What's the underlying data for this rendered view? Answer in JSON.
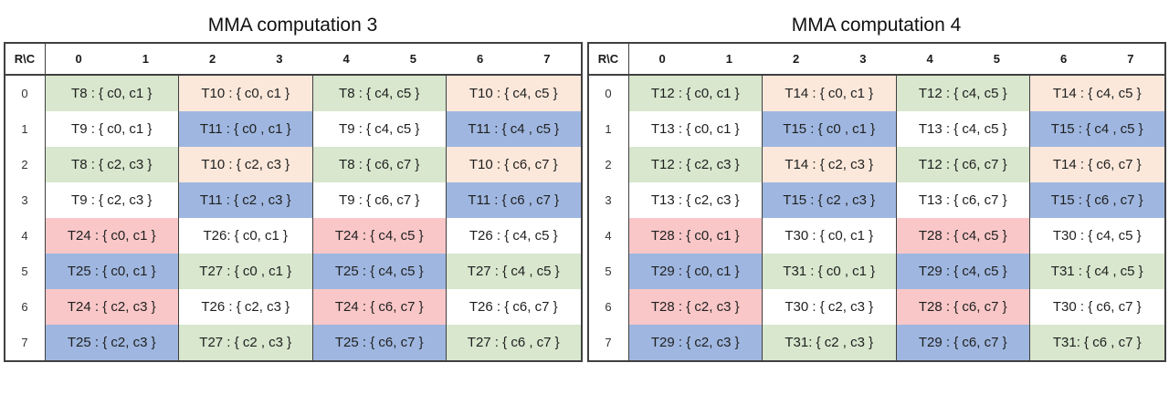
{
  "palette": {
    "green": "#d8e7ce",
    "peach": "#fbe8db",
    "blue": "#9fb7e0",
    "pink": "#f9c7c8",
    "white": "#ffffff",
    "border": "#404040",
    "text": "#1f1f1f"
  },
  "tables": [
    {
      "title": "MMA computation 3",
      "corner_label": "R\\C",
      "column_headers": [
        "0",
        "1",
        "2",
        "3",
        "4",
        "5",
        "6",
        "7"
      ],
      "row_labels": [
        "0",
        "1",
        "2",
        "3",
        "4",
        "5",
        "6",
        "7"
      ],
      "rows": [
        [
          {
            "text": "T8 : { c0, c1 }",
            "color": "green"
          },
          {
            "text": "T10 : { c0, c1 }",
            "color": "peach"
          },
          {
            "text": "T8 : { c4, c5 }",
            "color": "green"
          },
          {
            "text": "T10 : { c4, c5 }",
            "color": "peach"
          }
        ],
        [
          {
            "text": "T9 : { c0, c1 }",
            "color": "white"
          },
          {
            "text": "T11 : { c0 , c1 }",
            "color": "blue"
          },
          {
            "text": "T9 : { c4, c5 }",
            "color": "white"
          },
          {
            "text": "T11 : { c4 , c5 }",
            "color": "blue"
          }
        ],
        [
          {
            "text": "T8 : { c2, c3 }",
            "color": "green"
          },
          {
            "text": "T10 : { c2, c3 }",
            "color": "peach"
          },
          {
            "text": "T8 : { c6, c7 }",
            "color": "green"
          },
          {
            "text": "T10 : { c6, c7 }",
            "color": "peach"
          }
        ],
        [
          {
            "text": "T9 : { c2, c3 }",
            "color": "white"
          },
          {
            "text": "T11 : { c2 , c3 }",
            "color": "blue"
          },
          {
            "text": "T9 : { c6, c7 }",
            "color": "white"
          },
          {
            "text": "T11 : { c6 , c7 }",
            "color": "blue"
          }
        ],
        [
          {
            "text": "T24 : { c0, c1 }",
            "color": "pink"
          },
          {
            "text": "T26: { c0, c1 }",
            "color": "white"
          },
          {
            "text": "T24 : { c4, c5 }",
            "color": "pink"
          },
          {
            "text": "T26 : { c4, c5 }",
            "color": "white"
          }
        ],
        [
          {
            "text": "T25 : { c0, c1 }",
            "color": "blue"
          },
          {
            "text": "T27 : { c0 , c1 }",
            "color": "green"
          },
          {
            "text": "T25 : { c4, c5 }",
            "color": "blue"
          },
          {
            "text": "T27 : { c4 , c5 }",
            "color": "green"
          }
        ],
        [
          {
            "text": "T24 : { c2, c3 }",
            "color": "pink"
          },
          {
            "text": "T26 : { c2, c3 }",
            "color": "white"
          },
          {
            "text": "T24 : { c6, c7 }",
            "color": "pink"
          },
          {
            "text": "T26 : { c6, c7 }",
            "color": "white"
          }
        ],
        [
          {
            "text": "T25 : { c2, c3 }",
            "color": "blue"
          },
          {
            "text": "T27 : { c2 , c3 }",
            "color": "green"
          },
          {
            "text": "T25 : { c6, c7 }",
            "color": "blue"
          },
          {
            "text": "T27 : { c6 , c7 }",
            "color": "green"
          }
        ]
      ]
    },
    {
      "title": "MMA computation 4",
      "corner_label": "R\\C",
      "column_headers": [
        "0",
        "1",
        "2",
        "3",
        "4",
        "5",
        "6",
        "7"
      ],
      "row_labels": [
        "0",
        "1",
        "2",
        "3",
        "4",
        "5",
        "6",
        "7"
      ],
      "rows": [
        [
          {
            "text": "T12 : { c0, c1 }",
            "color": "green"
          },
          {
            "text": "T14 : { c0, c1 }",
            "color": "peach"
          },
          {
            "text": "T12 : { c4, c5 }",
            "color": "green"
          },
          {
            "text": "T14 : { c4, c5 }",
            "color": "peach"
          }
        ],
        [
          {
            "text": "T13 : { c0, c1 }",
            "color": "white"
          },
          {
            "text": "T15 : { c0 , c1 }",
            "color": "blue"
          },
          {
            "text": "T13 : { c4, c5 }",
            "color": "white"
          },
          {
            "text": "T15 : { c4 , c5 }",
            "color": "blue"
          }
        ],
        [
          {
            "text": "T12 : { c2, c3 }",
            "color": "green"
          },
          {
            "text": "T14 : { c2, c3 }",
            "color": "peach"
          },
          {
            "text": "T12 : { c6, c7 }",
            "color": "green"
          },
          {
            "text": "T14 : { c6, c7 }",
            "color": "peach"
          }
        ],
        [
          {
            "text": "T13 : { c2, c3 }",
            "color": "white"
          },
          {
            "text": "T15 : { c2 , c3 }",
            "color": "blue"
          },
          {
            "text": "T13 : { c6, c7 }",
            "color": "white"
          },
          {
            "text": "T15 : { c6 , c7 }",
            "color": "blue"
          }
        ],
        [
          {
            "text": "T28 : { c0, c1 }",
            "color": "pink"
          },
          {
            "text": "T30 : { c0, c1 }",
            "color": "white"
          },
          {
            "text": "T28 : { c4, c5 }",
            "color": "pink"
          },
          {
            "text": "T30 : { c4, c5 }",
            "color": "white"
          }
        ],
        [
          {
            "text": "T29 : { c0, c1 }",
            "color": "blue"
          },
          {
            "text": "T31 : { c0 , c1 }",
            "color": "green"
          },
          {
            "text": "T29 : { c4, c5 }",
            "color": "blue"
          },
          {
            "text": "T31 : { c4 , c5 }",
            "color": "green"
          }
        ],
        [
          {
            "text": "T28 : { c2, c3 }",
            "color": "pink"
          },
          {
            "text": "T30 : { c2, c3 }",
            "color": "white"
          },
          {
            "text": "T28 : { c6, c7 }",
            "color": "pink"
          },
          {
            "text": "T30 : { c6, c7 }",
            "color": "white"
          }
        ],
        [
          {
            "text": "T29 : { c2, c3 }",
            "color": "blue"
          },
          {
            "text": "T31: { c2 , c3 }",
            "color": "green"
          },
          {
            "text": "T29 : { c6, c7 }",
            "color": "blue"
          },
          {
            "text": "T31: { c6 , c7 }",
            "color": "green"
          }
        ]
      ]
    }
  ]
}
